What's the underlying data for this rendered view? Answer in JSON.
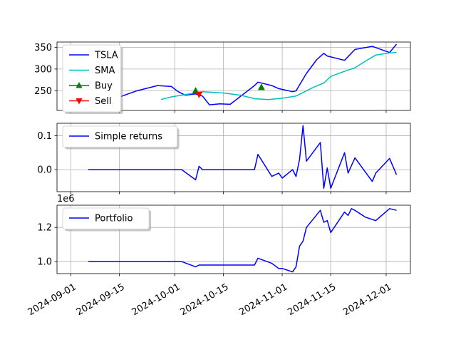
{
  "chart_data": [
    {
      "type": "line",
      "x_type": "date",
      "ylim": [
        205,
        362
      ],
      "yticks": [
        250,
        300,
        350
      ],
      "grid": true,
      "legend_position": "top-left",
      "legend": [
        "TSLA",
        "SMA",
        "Buy",
        "Sell"
      ],
      "series": [
        {
          "name": "TSLA",
          "color": "#0000ff",
          "x": [
            "2024-09-06",
            "2024-09-10",
            "2024-09-13",
            "2024-09-20",
            "2024-09-24",
            "2024-09-26",
            "2024-09-30",
            "2024-10-02",
            "2024-10-04",
            "2024-10-07",
            "2024-10-08",
            "2024-10-09",
            "2024-10-11",
            "2024-10-14",
            "2024-10-17",
            "2024-10-24",
            "2024-10-25",
            "2024-10-29",
            "2024-10-31",
            "2024-11-04",
            "2024-11-05",
            "2024-11-08",
            "2024-11-11",
            "2024-11-13",
            "2024-11-14",
            "2024-11-19",
            "2024-11-22",
            "2024-11-27",
            "2024-12-02",
            "2024-12-04"
          ],
          "y": [
            210,
            215,
            230,
            250,
            258,
            262,
            260,
            248,
            240,
            243,
            240,
            238,
            218,
            220,
            219,
            262,
            270,
            262,
            255,
            248,
            250,
            290,
            322,
            336,
            330,
            320,
            345,
            352,
            338,
            357
          ]
        },
        {
          "name": "SMA",
          "color": "#00bfbf",
          "x": [
            "2024-09-27",
            "2024-09-30",
            "2024-10-03",
            "2024-10-09",
            "2024-10-15",
            "2024-10-20",
            "2024-10-24",
            "2024-10-28",
            "2024-11-01",
            "2024-11-05",
            "2024-11-10",
            "2024-11-13",
            "2024-11-15",
            "2024-11-18",
            "2024-11-22",
            "2024-11-25",
            "2024-11-28",
            "2024-12-02",
            "2024-12-04"
          ],
          "y": [
            230,
            236,
            240,
            248,
            245,
            240,
            232,
            230,
            233,
            238,
            258,
            268,
            283,
            292,
            303,
            318,
            332,
            337,
            338
          ]
        }
      ],
      "markers": [
        {
          "name": "Buy",
          "color": "#008000",
          "shape": "triangle-up",
          "x": [
            "2024-10-07",
            "2024-10-26"
          ],
          "y": [
            250,
            258
          ]
        },
        {
          "name": "Sell",
          "color": "#ff0000",
          "shape": "triangle-down",
          "x": [
            "2024-10-08"
          ],
          "y": [
            242
          ]
        }
      ]
    },
    {
      "type": "line",
      "x_type": "date",
      "ylim": [
        -0.065,
        0.137
      ],
      "yticks": [
        0.0,
        0.1
      ],
      "grid": true,
      "legend_position": "top-left",
      "legend": [
        "Simple returns"
      ],
      "series": [
        {
          "name": "Simple returns",
          "color": "#0000ff",
          "x": [
            "2024-09-06",
            "2024-10-03",
            "2024-10-07",
            "2024-10-08",
            "2024-10-09",
            "2024-10-24",
            "2024-10-25",
            "2024-10-29",
            "2024-10-31",
            "2024-11-01",
            "2024-11-04",
            "2024-11-05",
            "2024-11-06",
            "2024-11-07",
            "2024-11-08",
            "2024-11-12",
            "2024-11-13",
            "2024-11-14",
            "2024-11-15",
            "2024-11-19",
            "2024-11-20",
            "2024-11-22",
            "2024-11-27",
            "2024-11-28",
            "2024-12-02",
            "2024-12-04"
          ],
          "y": [
            0.0,
            0.0,
            -0.03,
            0.01,
            0.0,
            0.0,
            0.045,
            -0.02,
            -0.01,
            -0.025,
            0.0,
            -0.02,
            0.03,
            0.13,
            0.025,
            0.08,
            -0.055,
            0.005,
            -0.055,
            0.05,
            -0.01,
            0.035,
            -0.035,
            -0.01,
            0.033,
            -0.015
          ]
        }
      ]
    },
    {
      "type": "line",
      "x_type": "date",
      "offset_label": "1e6",
      "ylim": [
        0.93,
        1.33
      ],
      "yticks": [
        1.0,
        1.2
      ],
      "grid": true,
      "legend_position": "top-left",
      "legend": [
        "Portfolio"
      ],
      "series": [
        {
          "name": "Portfolio",
          "color": "#0000ff",
          "x": [
            "2024-09-06",
            "2024-10-03",
            "2024-10-07",
            "2024-10-08",
            "2024-10-24",
            "2024-10-25",
            "2024-10-29",
            "2024-10-31",
            "2024-11-01",
            "2024-11-04",
            "2024-11-05",
            "2024-11-06",
            "2024-11-07",
            "2024-11-08",
            "2024-11-12",
            "2024-11-13",
            "2024-11-14",
            "2024-11-15",
            "2024-11-19",
            "2024-11-20",
            "2024-11-21",
            "2024-11-22",
            "2024-11-25",
            "2024-11-28",
            "2024-12-02",
            "2024-12-04"
          ],
          "y": [
            1.0,
            1.0,
            0.97,
            0.98,
            0.98,
            1.02,
            0.99,
            0.96,
            0.96,
            0.94,
            0.97,
            1.09,
            1.12,
            1.2,
            1.3,
            1.23,
            1.24,
            1.17,
            1.29,
            1.27,
            1.31,
            1.3,
            1.26,
            1.24,
            1.31,
            1.3
          ]
        }
      ]
    }
  ],
  "x_axis": {
    "range": [
      "2024-08-28",
      "2024-12-08"
    ],
    "ticks": [
      "2024-09-01",
      "2024-09-15",
      "2024-10-01",
      "2024-10-15",
      "2024-11-01",
      "2024-11-15",
      "2024-12-01"
    ]
  }
}
